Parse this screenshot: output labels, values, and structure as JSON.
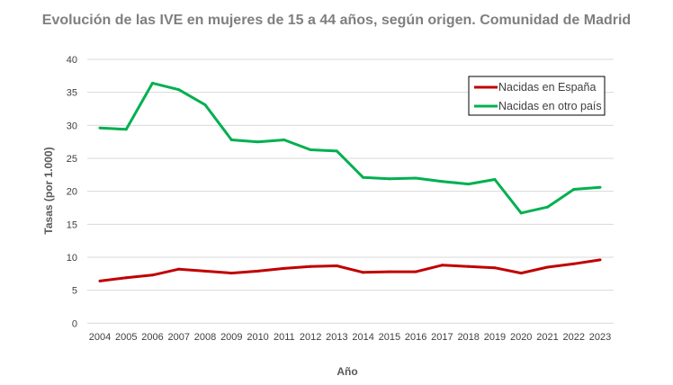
{
  "chart_data": {
    "type": "line",
    "title": "Evolución de las IVE en mujeres de 15 a 44 años, según origen. Comunidad de Madrid",
    "xlabel": "Año",
    "ylabel": "Tasas (por 1.000)",
    "ylim": [
      0,
      40
    ],
    "yticks": [
      "0",
      "5",
      "10",
      "15",
      "20",
      "25",
      "30",
      "35",
      "40"
    ],
    "categories": [
      "2004",
      "2005",
      "2006",
      "2007",
      "2008",
      "2009",
      "2010",
      "2011",
      "2012",
      "2013",
      "2014",
      "2015",
      "2016",
      "2017",
      "2018",
      "2019",
      "2020",
      "2021",
      "2022",
      "2023"
    ],
    "grid": true,
    "legend_position": "top-right",
    "series": [
      {
        "name": "Nacidas en España",
        "color": "#c00000",
        "values": [
          6.4,
          6.9,
          7.3,
          8.2,
          7.9,
          7.6,
          7.9,
          8.3,
          8.6,
          8.7,
          7.7,
          7.8,
          7.8,
          8.8,
          8.6,
          8.4,
          7.6,
          8.5,
          9.0,
          9.6
        ]
      },
      {
        "name": "Nacidas en otro país",
        "color": "#00b050",
        "values": [
          29.6,
          29.4,
          36.4,
          35.4,
          33.1,
          27.8,
          27.5,
          27.8,
          26.3,
          26.1,
          22.1,
          21.9,
          22.0,
          21.5,
          21.1,
          21.8,
          16.7,
          17.6,
          20.3,
          20.6
        ]
      }
    ]
  }
}
